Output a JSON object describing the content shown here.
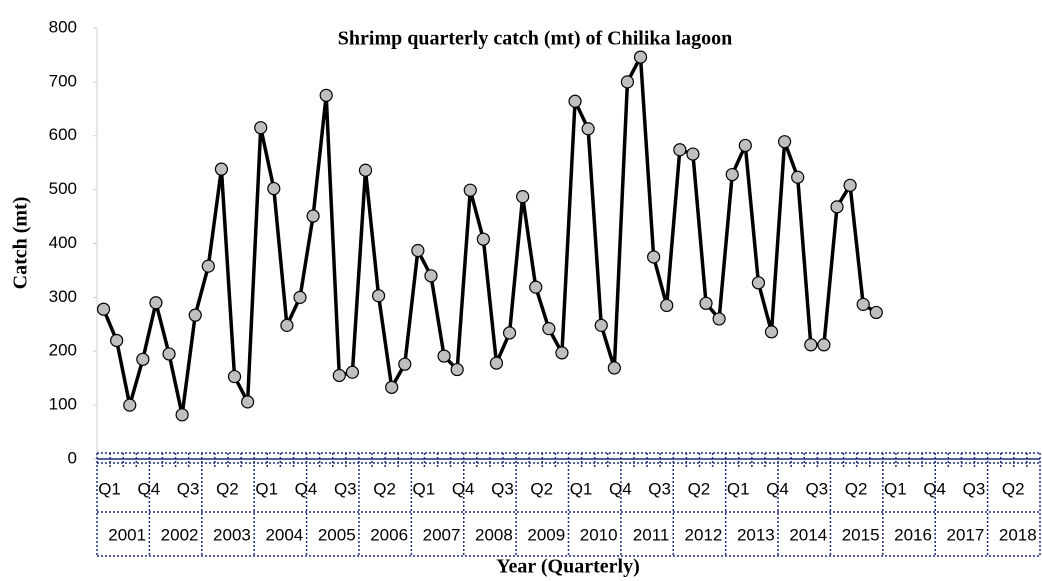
{
  "chart_data": {
    "type": "line",
    "title": "Shrimp quarterly catch (mt) of Chilika lagoon",
    "x_label": "Year (Quarterly)",
    "y_label": "Catch (mt)",
    "categories": [
      "Q1",
      null,
      null,
      "Q4",
      null,
      null,
      "Q3",
      null,
      null,
      "Q2",
      null,
      null,
      "Q1",
      null,
      null,
      "Q4",
      null,
      null,
      "Q3",
      null,
      null,
      "Q2",
      null,
      null,
      "Q1",
      null,
      null,
      "Q4",
      null,
      null,
      "Q3",
      null,
      null,
      "Q2",
      null,
      null,
      "Q1",
      null,
      null,
      "Q4",
      null,
      null,
      "Q3",
      null,
      null,
      "Q2",
      null,
      null,
      "Q1",
      null,
      null,
      "Q4",
      null,
      null,
      "Q3",
      null,
      null,
      "Q2",
      null,
      null,
      "Q1",
      null,
      null,
      "Q4",
      null,
      null,
      "Q3",
      null,
      null,
      "Q2",
      null,
      null
    ],
    "year_groups": [
      "2001",
      "2002",
      "2003",
      "2004",
      "2005",
      "2006",
      "2007",
      "2008",
      "2009",
      "2010",
      "2011",
      "2012",
      "2013",
      "2014",
      "2015",
      "2016",
      "2017",
      "2018"
    ],
    "series": [
      {
        "color": "#000000",
        "marker_color": "#bfbfbf",
        "values": [
          278,
          220,
          100,
          185,
          290,
          195,
          82,
          267,
          358,
          538,
          153,
          106,
          615,
          502,
          248,
          300,
          451,
          675,
          155,
          161,
          536,
          303,
          133,
          176,
          387,
          340,
          191,
          166,
          499,
          408,
          178,
          234,
          487,
          319,
          242,
          197,
          664,
          613,
          248,
          169,
          700,
          746,
          375,
          285,
          574,
          566,
          289,
          260,
          528,
          582,
          327,
          236,
          589,
          523,
          212,
          212,
          468,
          508,
          287,
          272,
          null,
          null,
          null,
          null,
          null,
          null,
          null,
          null,
          null,
          null,
          null,
          null
        ]
      }
    ],
    "ylim": [
      0,
      800
    ],
    "yticks": [
      0,
      100,
      200,
      300,
      400,
      500,
      600,
      700,
      800
    ]
  }
}
